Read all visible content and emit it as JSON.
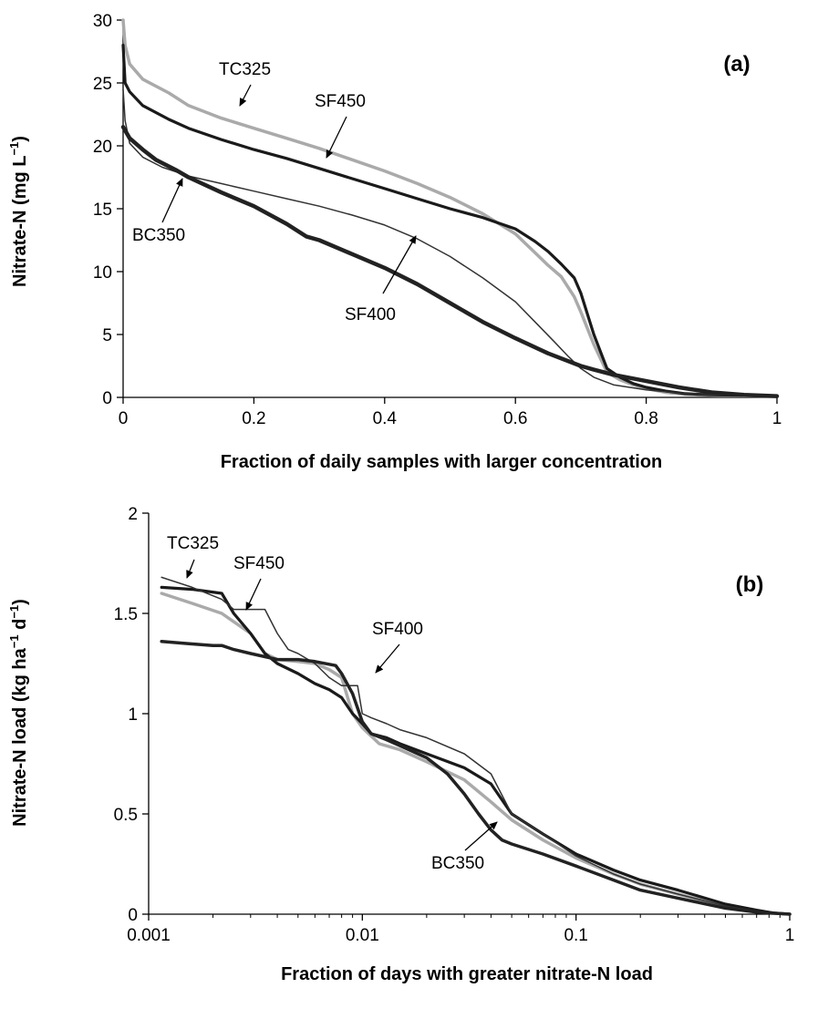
{
  "chart_data": [
    {
      "type": "line",
      "panel_label": "(a)",
      "xlabel": "Fraction of daily samples with larger concentration",
      "ylabel": "Nitrate-N (mg L",
      "ylabel_sup": "−1",
      "ylabel_end": ")",
      "xlim": [
        0,
        1
      ],
      "ylim": [
        0,
        30
      ],
      "x_ticks": [
        0,
        0.2,
        0.4,
        0.6,
        0.8,
        1
      ],
      "x_tick_labels": [
        "0",
        "0.2",
        "0.4",
        "0.6",
        "0.8",
        "1"
      ],
      "y_ticks": [
        0,
        5,
        10,
        15,
        20,
        25,
        30
      ],
      "y_tick_labels": [
        "0",
        "5",
        "10",
        "15",
        "20",
        "25",
        "30"
      ],
      "grid": false,
      "legend": "none",
      "series": [
        {
          "name": "TC325",
          "color": "#aaaaaa",
          "width": 3.5,
          "x": [
            0,
            0.003,
            0.01,
            0.03,
            0.07,
            0.1,
            0.15,
            0.2,
            0.25,
            0.3,
            0.35,
            0.4,
            0.45,
            0.5,
            0.55,
            0.6,
            0.63,
            0.65,
            0.67,
            0.69,
            0.7,
            0.72,
            0.74,
            0.76,
            0.78,
            0.8,
            0.83,
            0.86,
            0.9,
            0.95,
            1.0
          ],
          "y": [
            30,
            28,
            26.5,
            25.3,
            24.2,
            23.2,
            22.2,
            21.4,
            20.6,
            19.8,
            18.9,
            18.0,
            17.0,
            15.9,
            14.6,
            13.0,
            11.5,
            10.5,
            9.6,
            8.0,
            6.8,
            4.2,
            2.0,
            1.4,
            1.0,
            0.7,
            0.4,
            0.25,
            0.15,
            0.12,
            0.1
          ]
        },
        {
          "name": "SF450",
          "color": "#1a1a1a",
          "width": 3.2,
          "x": [
            0,
            0.003,
            0.01,
            0.03,
            0.07,
            0.1,
            0.15,
            0.2,
            0.25,
            0.3,
            0.35,
            0.4,
            0.45,
            0.5,
            0.55,
            0.6,
            0.63,
            0.65,
            0.67,
            0.69,
            0.7,
            0.72,
            0.74,
            0.76,
            0.78,
            0.8,
            0.83,
            0.86,
            0.9,
            0.95,
            1.0
          ],
          "y": [
            28,
            25,
            24.3,
            23.2,
            22.1,
            21.4,
            20.5,
            19.7,
            19.0,
            18.2,
            17.4,
            16.6,
            15.8,
            15.0,
            14.3,
            13.4,
            12.4,
            11.6,
            10.6,
            9.5,
            8.3,
            5.0,
            2.3,
            1.6,
            1.1,
            0.8,
            0.5,
            0.3,
            0.2,
            0.15,
            0.12
          ]
        },
        {
          "name": "SF400",
          "color": "#333333",
          "width": 1.5,
          "x": [
            0,
            0.003,
            0.01,
            0.03,
            0.06,
            0.1,
            0.15,
            0.2,
            0.25,
            0.3,
            0.35,
            0.4,
            0.45,
            0.5,
            0.55,
            0.6,
            0.63,
            0.66,
            0.68,
            0.7,
            0.72,
            0.75,
            0.8,
            0.85,
            0.9,
            0.95,
            1.0
          ],
          "y": [
            24.5,
            22,
            20.2,
            19.1,
            18.3,
            17.6,
            17.0,
            16.4,
            15.8,
            15.2,
            14.5,
            13.7,
            12.6,
            11.2,
            9.5,
            7.6,
            6.0,
            4.4,
            3.3,
            2.3,
            1.6,
            1.0,
            0.6,
            0.35,
            0.2,
            0.12,
            0.1
          ]
        },
        {
          "name": "BC350",
          "color": "#222222",
          "width": 4.5,
          "x": [
            0,
            0.01,
            0.03,
            0.05,
            0.08,
            0.1,
            0.15,
            0.2,
            0.25,
            0.28,
            0.3,
            0.35,
            0.4,
            0.45,
            0.5,
            0.55,
            0.6,
            0.65,
            0.7,
            0.72,
            0.75,
            0.8,
            0.85,
            0.9,
            0.95,
            1.0
          ],
          "y": [
            21.5,
            20.6,
            19.7,
            18.9,
            18.1,
            17.5,
            16.3,
            15.2,
            13.8,
            12.8,
            12.5,
            11.4,
            10.3,
            9.0,
            7.5,
            6.0,
            4.7,
            3.5,
            2.5,
            2.2,
            1.8,
            1.3,
            0.8,
            0.4,
            0.2,
            0.1
          ]
        }
      ],
      "annotations": [
        {
          "text": "TC325",
          "series": "TC325"
        },
        {
          "text": "SF450",
          "series": "SF450"
        },
        {
          "text": "BC350",
          "series": "BC350"
        },
        {
          "text": "SF400",
          "series": "SF400"
        }
      ]
    },
    {
      "type": "line",
      "panel_label": "(b)",
      "xlabel": "Fraction of days with greater nitrate-N load",
      "ylabel": "Nitrate-N load (kg ha",
      "ylabel_sup1": "−1",
      "ylabel_mid": " d",
      "ylabel_sup2": "−1",
      "ylabel_end": ")",
      "xscale": "log",
      "xlim": [
        0.001,
        1
      ],
      "ylim": [
        0,
        2
      ],
      "x_ticks": [
        0.001,
        0.01,
        0.1,
        1
      ],
      "x_tick_labels": [
        "0.001",
        "0.01",
        "0.1",
        "1"
      ],
      "y_ticks": [
        0,
        0.5,
        1,
        1.5,
        2
      ],
      "y_tick_labels": [
        "0",
        "0.5",
        "1",
        "1.5",
        "2"
      ],
      "grid": false,
      "legend": "none",
      "series": [
        {
          "name": "TC325",
          "color": "#aaaaaa",
          "width": 3.5,
          "x": [
            0.00115,
            0.0016,
            0.0022,
            0.003,
            0.0035,
            0.004,
            0.005,
            0.006,
            0.007,
            0.008,
            0.009,
            0.01,
            0.012,
            0.015,
            0.02,
            0.03,
            0.04,
            0.05,
            0.07,
            0.1,
            0.15,
            0.2,
            0.3,
            0.5,
            0.7,
            0.85,
            1.0
          ],
          "y": [
            1.6,
            1.55,
            1.5,
            1.4,
            1.3,
            1.27,
            1.26,
            1.25,
            1.22,
            1.18,
            1.0,
            0.93,
            0.85,
            0.82,
            0.76,
            0.67,
            0.56,
            0.47,
            0.37,
            0.28,
            0.2,
            0.15,
            0.1,
            0.04,
            0.015,
            0.005,
            0.0
          ]
        },
        {
          "name": "SF450",
          "color": "#1a1a1a",
          "width": 3.2,
          "x": [
            0.00115,
            0.0016,
            0.0022,
            0.0025,
            0.003,
            0.0035,
            0.004,
            0.005,
            0.006,
            0.007,
            0.008,
            0.009,
            0.01,
            0.011,
            0.013,
            0.015,
            0.02,
            0.03,
            0.04,
            0.05,
            0.07,
            0.1,
            0.15,
            0.2,
            0.3,
            0.5,
            0.7,
            0.85,
            1.0
          ],
          "y": [
            1.63,
            1.62,
            1.6,
            1.5,
            1.4,
            1.3,
            1.25,
            1.2,
            1.15,
            1.12,
            1.08,
            1.0,
            0.95,
            0.9,
            0.88,
            0.85,
            0.8,
            0.73,
            0.65,
            0.5,
            0.4,
            0.3,
            0.22,
            0.17,
            0.12,
            0.05,
            0.02,
            0.005,
            0.0
          ]
        },
        {
          "name": "SF400",
          "color": "#333333",
          "width": 1.5,
          "x": [
            0.00115,
            0.0016,
            0.0022,
            0.0025,
            0.003,
            0.0035,
            0.004,
            0.0045,
            0.005,
            0.006,
            0.007,
            0.008,
            0.009,
            0.0095,
            0.01,
            0.011,
            0.013,
            0.015,
            0.02,
            0.03,
            0.04,
            0.05,
            0.07,
            0.1,
            0.15,
            0.2,
            0.3,
            0.5,
            0.7,
            1.0
          ],
          "y": [
            1.68,
            1.63,
            1.57,
            1.52,
            1.52,
            1.52,
            1.4,
            1.32,
            1.3,
            1.25,
            1.18,
            1.14,
            1.14,
            1.14,
            1.0,
            0.98,
            0.95,
            0.92,
            0.88,
            0.8,
            0.7,
            0.5,
            0.4,
            0.29,
            0.2,
            0.15,
            0.1,
            0.04,
            0.015,
            0.0
          ]
        },
        {
          "name": "BC350",
          "color": "#222222",
          "width": 3.5,
          "x": [
            0.00115,
            0.0015,
            0.002,
            0.0022,
            0.0025,
            0.003,
            0.004,
            0.005,
            0.006,
            0.0075,
            0.008,
            0.009,
            0.01,
            0.011,
            0.013,
            0.015,
            0.02,
            0.025,
            0.03,
            0.035,
            0.04,
            0.045,
            0.05,
            0.07,
            0.1,
            0.15,
            0.2,
            0.3,
            0.5,
            0.7,
            1.0
          ],
          "y": [
            1.36,
            1.35,
            1.34,
            1.34,
            1.32,
            1.3,
            1.27,
            1.27,
            1.26,
            1.24,
            1.2,
            1.1,
            0.96,
            0.9,
            0.87,
            0.84,
            0.78,
            0.7,
            0.6,
            0.5,
            0.42,
            0.37,
            0.35,
            0.3,
            0.24,
            0.17,
            0.12,
            0.08,
            0.03,
            0.01,
            0.0
          ]
        }
      ],
      "annotations": [
        {
          "text": "TC325",
          "series": "TC325"
        },
        {
          "text": "SF450",
          "series": "SF450"
        },
        {
          "text": "SF400",
          "series": "SF400"
        },
        {
          "text": "BC350",
          "series": "BC350"
        }
      ]
    }
  ]
}
